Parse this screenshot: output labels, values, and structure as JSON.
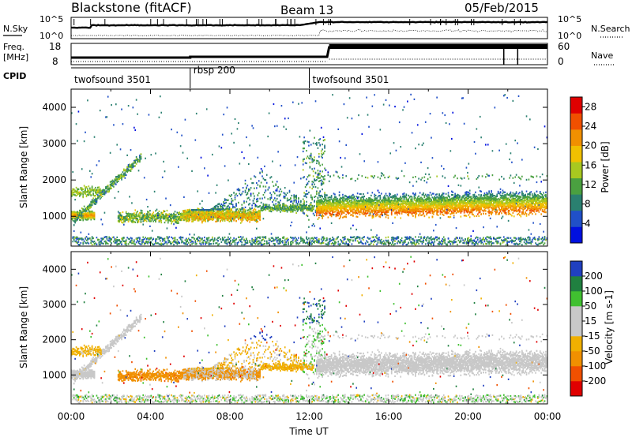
{
  "header": {
    "station": "Blackstone (fitACF)",
    "beam": "Beam 13",
    "date": "05/Feb/2015"
  },
  "noise_panel": {
    "left_label": "N.Sky",
    "right_label": "N.Search",
    "left_ticks": [
      "10^5",
      "10^0"
    ],
    "right_ticks": [
      "10^5",
      "10^0"
    ]
  },
  "freq_panel": {
    "left_label_1": "Freq.",
    "left_label_2": "[MHz]",
    "right_label": "Nave",
    "left_ticks": [
      "18",
      "8"
    ],
    "right_ticks": [
      "60",
      "0"
    ]
  },
  "cpid": {
    "label": "CPID",
    "segments": [
      {
        "name": "twofsound 3501",
        "start_h": 0,
        "end_h": 6
      },
      {
        "name": "rbsp 200",
        "start_h": 6,
        "end_h": 12
      },
      {
        "name": "twofsound 3501",
        "start_h": 12,
        "end_h": 24
      }
    ]
  },
  "colors": {
    "power_scale": [
      "#0010e0",
      "#2050c8",
      "#2a8070",
      "#4aa040",
      "#a8c820",
      "#f0c000",
      "#f09000",
      "#f05000",
      "#e00000"
    ],
    "velocity_scale": [
      "#e00000",
      "#f05000",
      "#f09000",
      "#f0b000",
      "#c8c8c8",
      "#c8c8c8",
      "#40c030",
      "#208040",
      "#2040c0"
    ]
  },
  "chart_data": [
    {
      "type": "heatmap",
      "name": "power",
      "xlabel": "",
      "ylabel": "Slant Range [km]",
      "xlim": [
        0,
        24
      ],
      "ylim": [
        180,
        4500
      ],
      "y_ticks": [
        "1000",
        "2000",
        "3000",
        "4000"
      ],
      "colorbar": {
        "label": "Power [dB]",
        "ticks": [
          "4",
          "8",
          "12",
          "16",
          "20",
          "24",
          "28"
        ],
        "range": [
          0,
          30
        ]
      }
    },
    {
      "type": "heatmap",
      "name": "velocity",
      "xlabel": "Time UT",
      "ylabel": "Slant Range [km]",
      "xlim": [
        0,
        24
      ],
      "ylim": [
        180,
        4500
      ],
      "x_ticks": [
        "00:00",
        "04:00",
        "08:00",
        "12:00",
        "16:00",
        "20:00",
        "00:00"
      ],
      "y_ticks": [
        "1000",
        "2000",
        "3000",
        "4000"
      ],
      "colorbar": {
        "label": "Velocity [m s-1]",
        "ticks": [
          "200",
          "100",
          "50",
          "15",
          "-15",
          "-50",
          "-100",
          "-200"
        ]
      }
    }
  ]
}
